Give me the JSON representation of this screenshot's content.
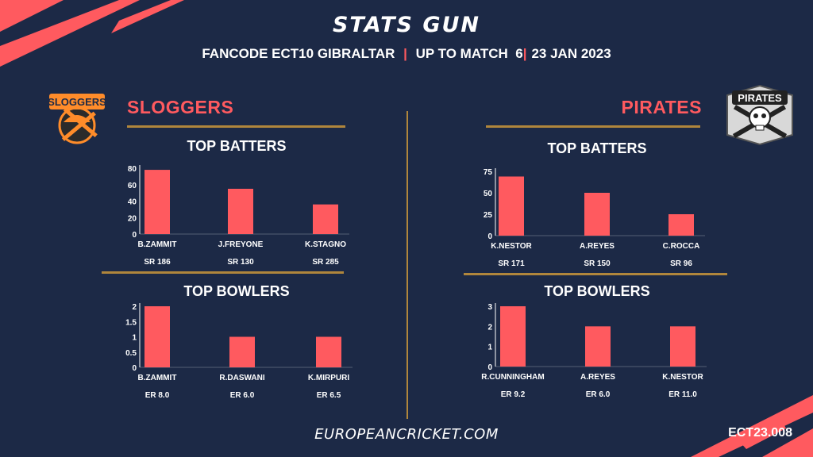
{
  "header": {
    "title": "STATS GUN",
    "subtitle_parts": [
      "FANCODE ECT10 GIBRALTAR",
      "|",
      "UP TO MATCH  6",
      "|",
      "23 JAN 2023"
    ]
  },
  "teams": {
    "left": {
      "name": "SLOGGERS",
      "logo_text": "SLOGGERS"
    },
    "right": {
      "name": "PIRATES",
      "logo_text": "PIRATES"
    }
  },
  "sections": {
    "batters": "TOP BATTERS",
    "bowlers": "TOP BOWLERS"
  },
  "footer": {
    "site": "EUROPEANCRICKET.COM",
    "code": "ECT23.008"
  },
  "colors": {
    "background": "#1c2946",
    "accent": "#ff5a5f",
    "gold": "#b0863c"
  },
  "chart_data": [
    {
      "id": "sloggers_batters",
      "type": "bar",
      "title": "TOP BATTERS",
      "categories": [
        "B.ZAMMIT",
        "J.FREYONE",
        "K.STAGNO"
      ],
      "values": [
        78,
        55,
        36
      ],
      "sublabels": [
        "SR 186",
        "SR 130",
        "SR 285"
      ],
      "yticks": [
        0,
        20,
        40,
        60,
        80
      ],
      "ylim": [
        0,
        80
      ]
    },
    {
      "id": "sloggers_bowlers",
      "type": "bar",
      "title": "TOP BOWLERS",
      "categories": [
        "B.ZAMMIT",
        "R.DASWANI",
        "K.MIRPURI"
      ],
      "values": [
        2,
        1,
        1
      ],
      "sublabels": [
        "ER 8.0",
        "ER 6.0",
        "ER 6.5"
      ],
      "yticks": [
        0,
        0.5,
        1,
        1.5,
        2
      ],
      "ylim": [
        0,
        2
      ]
    },
    {
      "id": "pirates_batters",
      "type": "bar",
      "title": "TOP BATTERS",
      "categories": [
        "K.NESTOR",
        "A.REYES",
        "C.ROCCA"
      ],
      "values": [
        69,
        50,
        25
      ],
      "sublabels": [
        "SR 171",
        "SR 150",
        "SR 96"
      ],
      "yticks": [
        0,
        25,
        50,
        75
      ],
      "ylim": [
        0,
        75
      ]
    },
    {
      "id": "pirates_bowlers",
      "type": "bar",
      "title": "TOP BOWLERS",
      "categories": [
        "R.CUNNINGHAM",
        "A.REYES",
        "K.NESTOR"
      ],
      "values": [
        3,
        2,
        2
      ],
      "sublabels": [
        "ER 9.2",
        "ER 6.0",
        "ER 11.0"
      ],
      "yticks": [
        0,
        1,
        2,
        3
      ],
      "ylim": [
        0,
        3
      ]
    }
  ]
}
